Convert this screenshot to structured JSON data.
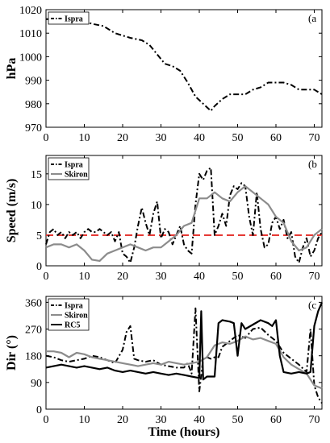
{
  "chart_data": [
    {
      "type": "line",
      "panel_letter": "(a",
      "ylabel": "hPa",
      "xlabel": "",
      "xlim": [
        0,
        72
      ],
      "ylim": [
        970,
        1020
      ],
      "xticks": [
        0,
        10,
        20,
        30,
        40,
        50,
        60,
        70
      ],
      "yticks": [
        970,
        980,
        990,
        1000,
        1010,
        1020
      ],
      "legend": "top-left",
      "grid": false,
      "series": [
        {
          "name": "Ispra",
          "color": "#000000",
          "style": "dashdot",
          "x": [
            0,
            2,
            5,
            8,
            10,
            12,
            15,
            18,
            20,
            22,
            25,
            27,
            29,
            31,
            33,
            35,
            37,
            39,
            41,
            43,
            44,
            46,
            48,
            50,
            52,
            54,
            56,
            58,
            60,
            62,
            64,
            66,
            68,
            70,
            72
          ],
          "y": [
            1016,
            1016,
            1016,
            1016,
            1015,
            1014,
            1013,
            1010,
            1009,
            1008,
            1007,
            1005,
            1001,
            997,
            996,
            994,
            989,
            983,
            980,
            977,
            979,
            982,
            984,
            984,
            984,
            986,
            987,
            989,
            989,
            989,
            988,
            986,
            986,
            986,
            984
          ]
        }
      ]
    },
    {
      "type": "line",
      "panel_letter": "(b",
      "ylabel": "Speed (m/s)",
      "xlabel": "",
      "xlim": [
        0,
        72
      ],
      "ylim": [
        0,
        18
      ],
      "xticks": [
        0,
        10,
        20,
        30,
        40,
        50,
        60,
        70
      ],
      "yticks": [
        0,
        5,
        10,
        15
      ],
      "legend": "top-left",
      "grid": false,
      "reference_line": {
        "y": 5,
        "color": "#e53935"
      },
      "series": [
        {
          "name": "Ispra",
          "color": "#000000",
          "style": "dashdot",
          "x": [
            0,
            1,
            2,
            3,
            4,
            5,
            6,
            7,
            8,
            9,
            10,
            11,
            12,
            13,
            14,
            15,
            16,
            17,
            18,
            19,
            20,
            21,
            22,
            23,
            24,
            25,
            26,
            27,
            28,
            29,
            30,
            31,
            32,
            33,
            34,
            35,
            36,
            37,
            38,
            39,
            40,
            41,
            42,
            43,
            44,
            45,
            46,
            47,
            48,
            49,
            50,
            51,
            52,
            53,
            54,
            55,
            56,
            57,
            58,
            59,
            60,
            61,
            62,
            63,
            64,
            65,
            66,
            67,
            68,
            69,
            70,
            71,
            72
          ],
          "y": [
            3.5,
            5.5,
            6,
            5,
            5.5,
            4.5,
            5.5,
            5,
            5.5,
            4.5,
            5.5,
            6,
            5.5,
            5.5,
            6,
            5.5,
            5,
            5.5,
            4,
            5.5,
            2,
            1.5,
            0.5,
            3,
            6.5,
            9.5,
            7,
            5,
            8.5,
            10.5,
            4.5,
            6,
            5.5,
            3.5,
            5,
            6.5,
            3.5,
            2.5,
            2,
            10,
            15,
            14,
            15.5,
            16,
            5,
            6.5,
            8.5,
            6.5,
            11.5,
            13,
            12.5,
            13.5,
            13,
            8,
            5,
            12,
            6,
            3,
            3.5,
            7,
            8,
            6,
            7.5,
            4.5,
            5.5,
            1.5,
            0.5,
            3,
            4.5,
            1.5,
            2.5,
            4.5,
            5.5
          ]
        },
        {
          "name": "Skiron",
          "color": "#8c8c8c",
          "style": "solid",
          "x": [
            0,
            2,
            4,
            6,
            8,
            10,
            12,
            14,
            16,
            18,
            20,
            22,
            24,
            26,
            28,
            30,
            32,
            34,
            36,
            38,
            40,
            42,
            44,
            46,
            48,
            50,
            52,
            54,
            56,
            58,
            60,
            62,
            64,
            66,
            68,
            70,
            72
          ],
          "y": [
            3,
            3.5,
            3.5,
            3,
            3.5,
            2.5,
            1,
            0.8,
            2,
            2.5,
            3,
            3.5,
            3,
            2.5,
            3,
            3,
            4,
            5,
            6.5,
            7,
            11,
            11,
            12,
            11,
            10.5,
            12,
            13,
            12,
            11,
            10,
            8,
            7,
            4,
            2.5,
            3,
            5,
            6
          ]
        }
      ]
    },
    {
      "type": "line",
      "panel_letter": "(c",
      "ylabel": "Dir (°)",
      "xlabel": "Time (hours)",
      "xlim": [
        0,
        72
      ],
      "ylim": [
        0,
        380
      ],
      "xticks": [
        0,
        10,
        20,
        30,
        40,
        50,
        60,
        70
      ],
      "yticks": [
        0,
        90,
        180,
        270,
        360
      ],
      "legend": "top-left",
      "grid": false,
      "series": [
        {
          "name": "Ispra",
          "color": "#000000",
          "style": "dashdot",
          "x": [
            0,
            2,
            4,
            6,
            8,
            10,
            12,
            14,
            16,
            18,
            20,
            21,
            22,
            23,
            24,
            26,
            28,
            30,
            32,
            34,
            36,
            37,
            38,
            39,
            40,
            41,
            42,
            43,
            44,
            45,
            46,
            48,
            50,
            52,
            54,
            56,
            58,
            60,
            62,
            64,
            66,
            68,
            69,
            70,
            71,
            72
          ],
          "y": [
            180,
            175,
            165,
            160,
            165,
            170,
            180,
            175,
            165,
            155,
            200,
            260,
            280,
            170,
            165,
            160,
            165,
            150,
            145,
            140,
            140,
            155,
            120,
            340,
            60,
            170,
            175,
            170,
            175,
            175,
            210,
            230,
            250,
            240,
            270,
            275,
            250,
            230,
            190,
            170,
            150,
            125,
            270,
            80,
            40,
            20
          ]
        },
        {
          "name": "Skiron",
          "color": "#8c8c8c",
          "style": "solid",
          "x": [
            0,
            2,
            4,
            6,
            8,
            10,
            12,
            14,
            16,
            18,
            20,
            22,
            24,
            26,
            28,
            30,
            32,
            34,
            36,
            38,
            40,
            42,
            44,
            46,
            48,
            50,
            52,
            54,
            56,
            58,
            60,
            62,
            64,
            66,
            68,
            70,
            72
          ],
          "y": [
            195,
            195,
            190,
            175,
            190,
            185,
            175,
            170,
            165,
            160,
            155,
            150,
            145,
            150,
            155,
            150,
            160,
            155,
            150,
            155,
            160,
            175,
            215,
            225,
            220,
            230,
            245,
            235,
            240,
            230,
            220,
            175,
            150,
            135,
            120,
            80,
            70
          ]
        },
        {
          "name": "RC5",
          "color": "#000000",
          "style": "solid",
          "x": [
            0,
            2,
            4,
            6,
            8,
            10,
            12,
            14,
            16,
            18,
            20,
            22,
            24,
            26,
            28,
            30,
            32,
            34,
            36,
            38,
            40,
            40.5,
            41,
            42,
            43,
            44,
            45,
            46,
            48,
            49,
            50,
            51,
            52,
            54,
            56,
            58,
            59,
            60,
            61,
            62,
            64,
            66,
            68,
            69,
            70,
            71,
            72
          ],
          "y": [
            140,
            145,
            150,
            145,
            140,
            145,
            140,
            135,
            140,
            130,
            125,
            130,
            125,
            120,
            125,
            120,
            115,
            120,
            115,
            110,
            105,
            330,
            100,
            110,
            110,
            110,
            290,
            300,
            295,
            290,
            180,
            290,
            270,
            285,
            300,
            290,
            280,
            300,
            180,
            125,
            120,
            125,
            120,
            125,
            280,
            330,
            360
          ]
        }
      ]
    }
  ]
}
